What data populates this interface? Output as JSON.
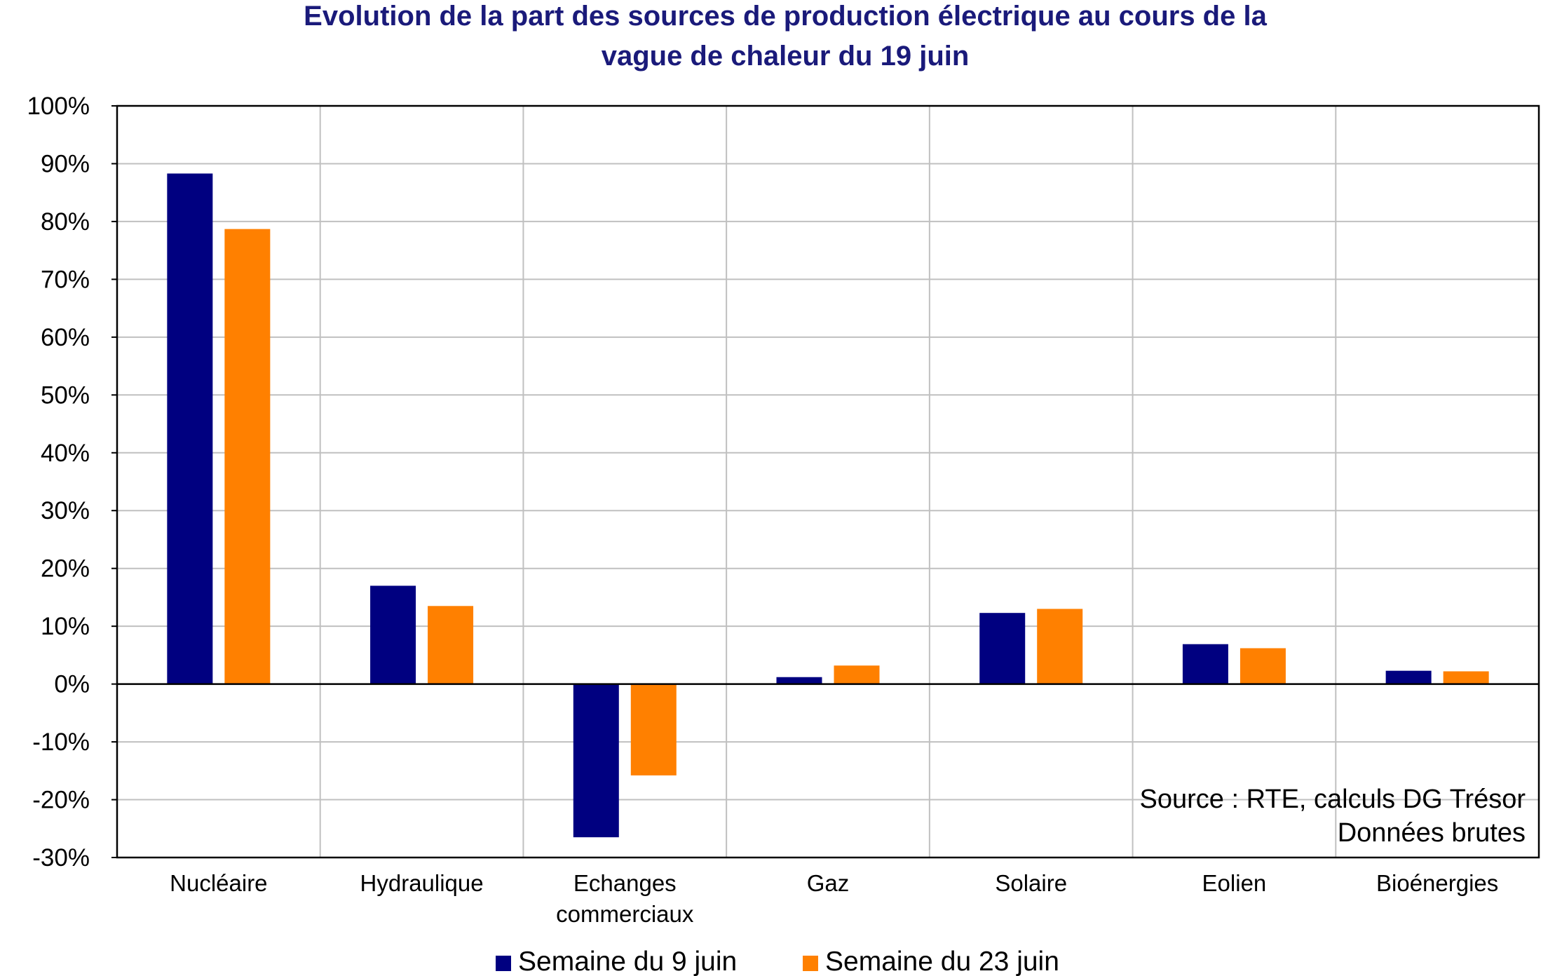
{
  "chart_data": {
    "type": "bar",
    "title_lines": [
      "Evolution de la part des sources de production électrique au cours de la",
      "vague de chaleur du 19 juin"
    ],
    "categories": [
      [
        "Nucléaire"
      ],
      [
        "Hydraulique"
      ],
      [
        "Echanges",
        "commerciaux"
      ],
      [
        "Gaz"
      ],
      [
        "Solaire"
      ],
      [
        "Eolien"
      ],
      [
        "Bioénergies"
      ]
    ],
    "series": [
      {
        "name": "Semaine du 9 juin",
        "color": "#000080",
        "values": [
          88.3,
          17.0,
          -26.5,
          1.2,
          12.3,
          6.9,
          2.3
        ]
      },
      {
        "name": "Semaine du 23 juin",
        "color": "#ff8000",
        "values": [
          78.7,
          13.5,
          -15.8,
          3.2,
          13.0,
          6.2,
          2.2
        ]
      }
    ],
    "ylim": [
      -30,
      100
    ],
    "yticks": [
      -30,
      -20,
      -10,
      0,
      10,
      20,
      30,
      40,
      50,
      60,
      70,
      80,
      90,
      100
    ],
    "ytick_labels": [
      "-30%",
      "-20%",
      "-10%",
      "0%",
      "10%",
      "20%",
      "30%",
      "40%",
      "50%",
      "60%",
      "70%",
      "80%",
      "90%",
      "100%"
    ],
    "grid": true,
    "legend_position": "bottom",
    "annotation_lines": [
      "Source : RTE, calculs DG Trésor",
      "Données brutes"
    ]
  }
}
